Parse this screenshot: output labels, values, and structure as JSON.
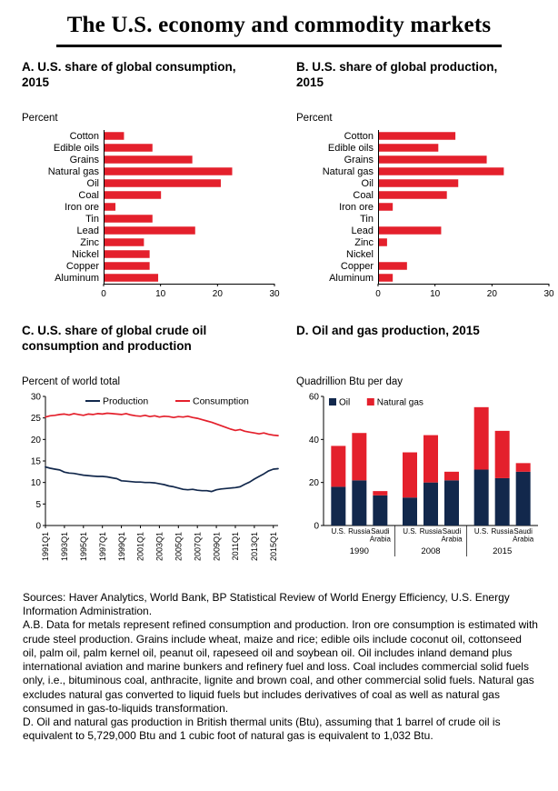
{
  "page_title": "The U.S. economy and commodity markets",
  "colors": {
    "red": "#e4202c",
    "navy": "#12284c",
    "axis": "#000000"
  },
  "panels": {
    "a": {
      "title": "A. U.S. share of global consumption, 2015",
      "unit": "Percent"
    },
    "b": {
      "title": "B. U.S. share of global production, 2015",
      "unit": "Percent"
    },
    "c": {
      "title": "C. U.S. share of global crude oil consumption and production",
      "unit": "Percent of world total"
    },
    "d": {
      "title": "D. Oil and gas production, 2015",
      "unit": "Quadrillion Btu per day"
    }
  },
  "chart_data": [
    {
      "type": "bar",
      "panel": "A",
      "title": "A. U.S. share of global consumption, 2015",
      "unit": "Percent",
      "orientation": "horizontal",
      "categories": [
        "Cotton",
        "Edible oils",
        "Grains",
        "Natural gas",
        "Oil",
        "Coal",
        "Iron ore",
        "Tin",
        "Lead",
        "Zinc",
        "Nickel",
        "Copper",
        "Aluminum"
      ],
      "values": [
        3.5,
        8.5,
        15.5,
        22.5,
        20.5,
        10,
        2,
        8.5,
        16,
        7,
        8,
        8,
        9.5
      ],
      "xlim": [
        0,
        30
      ],
      "xticks": [
        0,
        10,
        20,
        30
      ],
      "bar_color": "#e4202c"
    },
    {
      "type": "bar",
      "panel": "B",
      "title": "B. U.S. share of global production, 2015",
      "unit": "Percent",
      "orientation": "horizontal",
      "categories": [
        "Cotton",
        "Edible oils",
        "Grains",
        "Natural gas",
        "Oil",
        "Coal",
        "Iron ore",
        "Tin",
        "Lead",
        "Zinc",
        "Nickel",
        "Copper",
        "Aluminum"
      ],
      "values": [
        13.5,
        10.5,
        19,
        22,
        14,
        12,
        2.5,
        0,
        11,
        1.5,
        0,
        5,
        2.5
      ],
      "xlim": [
        0,
        30
      ],
      "xticks": [
        0,
        10,
        20,
        30
      ],
      "bar_color": "#e4202c"
    },
    {
      "type": "line",
      "panel": "C",
      "title": "C. U.S. share of global crude oil consumption and production",
      "unit": "Percent of world total",
      "ylim": [
        0,
        30
      ],
      "yticks": [
        0,
        5,
        10,
        15,
        20,
        25,
        30
      ],
      "x_tick_labels": [
        "1991Q1",
        "1993Q1",
        "1995Q1",
        "1997Q1",
        "1999Q1",
        "2001Q1",
        "2003Q1",
        "2005Q1",
        "2007Q1",
        "2009Q1",
        "2011Q1",
        "2013Q1",
        "2015Q1"
      ],
      "tick_every": 4,
      "series": [
        {
          "name": "Production",
          "color": "#12284c",
          "values": [
            13.6,
            13.3,
            13.1,
            12.9,
            12.4,
            12.2,
            12.1,
            11.9,
            11.7,
            11.6,
            11.5,
            11.4,
            11.4,
            11.3,
            11.1,
            10.9,
            10.4,
            10.3,
            10.2,
            10.1,
            10.1,
            10.0,
            10.0,
            9.9,
            9.7,
            9.5,
            9.2,
            9.0,
            8.7,
            8.4,
            8.3,
            8.4,
            8.2,
            8.1,
            8.1,
            7.9,
            8.3,
            8.5,
            8.6,
            8.7,
            8.8,
            9.0,
            9.6,
            10.1,
            10.8,
            11.4,
            12.0,
            12.7,
            13.1,
            13.2
          ]
        },
        {
          "name": "Consumption",
          "color": "#e4202c",
          "values": [
            25.2,
            25.5,
            25.6,
            25.8,
            25.9,
            25.7,
            26.0,
            25.8,
            25.6,
            25.9,
            25.8,
            26.0,
            25.9,
            26.1,
            26.0,
            25.9,
            25.8,
            26.0,
            25.7,
            25.5,
            25.4,
            25.6,
            25.3,
            25.5,
            25.2,
            25.4,
            25.3,
            25.1,
            25.3,
            25.2,
            25.4,
            25.1,
            24.9,
            24.6,
            24.3,
            24.0,
            23.6,
            23.2,
            22.8,
            22.4,
            22.1,
            22.3,
            21.9,
            21.7,
            21.5,
            21.3,
            21.5,
            21.2,
            21.0,
            20.9
          ]
        }
      ]
    },
    {
      "type": "stacked-bar",
      "panel": "D",
      "title": "D. Oil and gas production, 2015",
      "unit": "Quadrillion Btu per day",
      "ylim": [
        0,
        60
      ],
      "yticks": [
        0,
        20,
        40,
        60
      ],
      "groups": [
        "1990",
        "2008",
        "2015"
      ],
      "bar_labels": [
        "U.S.",
        "Russia",
        "Saudi Arabia"
      ],
      "series": [
        {
          "name": "Oil",
          "color": "#12284c",
          "values": [
            [
              18,
              21,
              14
            ],
            [
              13,
              20,
              21
            ],
            [
              26,
              22,
              25
            ]
          ]
        },
        {
          "name": "Natural gas",
          "color": "#e4202c",
          "values": [
            [
              19,
              22,
              2
            ],
            [
              21,
              22,
              4
            ],
            [
              29,
              22,
              4
            ]
          ]
        }
      ]
    }
  ],
  "notes": {
    "sources": "Sources: Haver Analytics, World Bank, BP Statistical Review of World Energy Efficiency, U.S. Energy Information Administration.",
    "ab": "A.B. Data for metals represent refined consumption and production. Iron ore consumption is estimated with crude steel production. Grains include wheat, maize and rice; edible oils include coconut oil, cottonseed oil, palm oil, palm kernel oil, peanut oil, rapeseed oil and soybean oil. Oil includes inland demand plus international aviation and marine bunkers and refinery fuel and loss. Coal includes commercial solid fuels only, i.e., bituminous coal, anthracite, lignite and brown coal, and other commercial solid fuels. Natural gas excludes natural gas converted to liquid fuels but includes derivatives of coal as well as natural gas consumed in gas-to-liquids transformation.",
    "d": "D. Oil and natural gas production in British thermal units (Btu), assuming that 1 barrel of crude oil is equivalent to 5,729,000 Btu and 1 cubic foot of natural gas is equivalent to 1,032 Btu."
  }
}
